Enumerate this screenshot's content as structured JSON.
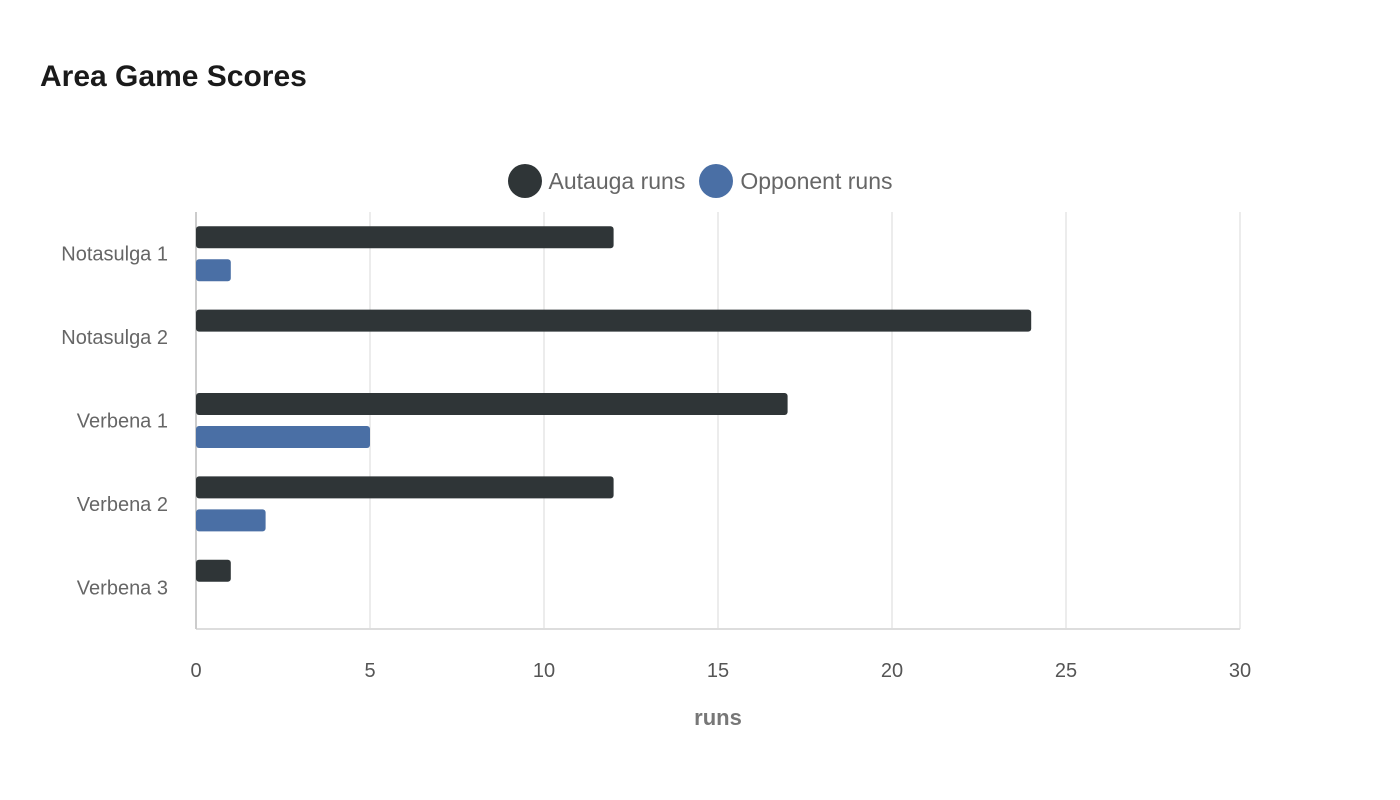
{
  "title": "Area Game Scores",
  "chart_data": {
    "type": "bar",
    "orientation": "horizontal",
    "categories": [
      "Notasulga 1",
      "Notasulga 2",
      "Verbena 1",
      "Verbena 2",
      "Verbena 3"
    ],
    "series": [
      {
        "name": "Autauga runs",
        "color": "#2f3537",
        "values": [
          12,
          24,
          17,
          12,
          1
        ]
      },
      {
        "name": "Opponent runs",
        "color": "#4a6fa5",
        "values": [
          1,
          0,
          5,
          2,
          0
        ]
      }
    ],
    "xlabel": "runs",
    "ylabel": "",
    "xlim": [
      0,
      30
    ],
    "x_ticks": [
      0,
      5,
      10,
      15,
      20,
      25,
      30
    ],
    "grid": true,
    "legend_position": "top-center"
  }
}
